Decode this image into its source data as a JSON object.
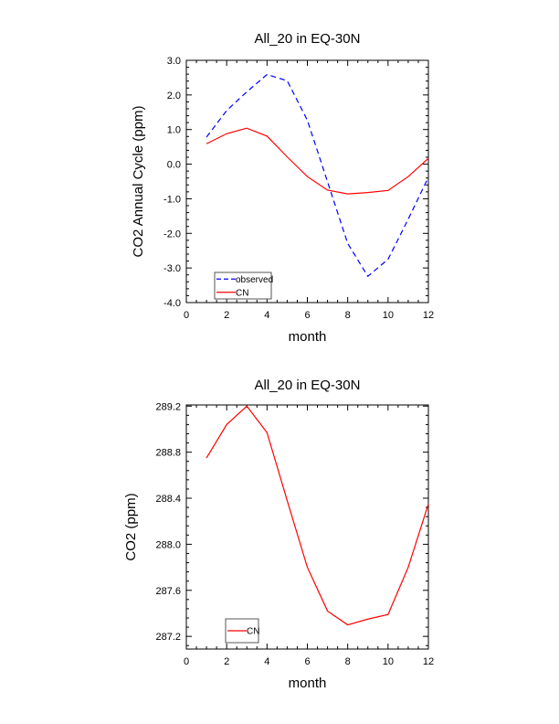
{
  "chart_data": [
    {
      "type": "line",
      "title": "All_20 in EQ-30N",
      "xlabel": "month",
      "ylabel": "CO2 Annual Cycle (ppm)",
      "xlim": [
        0,
        12
      ],
      "ylim": [
        -4.0,
        3.0
      ],
      "xticks": [
        0,
        2,
        4,
        6,
        8,
        10,
        12
      ],
      "xtick_labels": [
        "0",
        "2",
        "4",
        "6",
        "8",
        "10",
        "12"
      ],
      "yticks": [
        -4,
        -3,
        -2,
        -1,
        0,
        1,
        2,
        3
      ],
      "ytick_labels": [
        "-4.0",
        "-3.0",
        "-2.0",
        "-1.0",
        "0.0",
        "1.0",
        "2.0",
        "3.0"
      ],
      "grid": false,
      "legend_placement": "bottom-left",
      "x": [
        1,
        2,
        3,
        4,
        5,
        6,
        7,
        8,
        9,
        10,
        11,
        12
      ],
      "series": [
        {
          "name": "observed",
          "color": "#0000ff",
          "dash": true,
          "values": [
            0.78,
            1.55,
            2.09,
            2.59,
            2.41,
            1.27,
            -0.51,
            -2.29,
            -3.24,
            -2.75,
            -1.59,
            -0.38
          ]
        },
        {
          "name": "CN",
          "color": "#ff0000",
          "dash": false,
          "values": [
            0.59,
            0.88,
            1.04,
            0.81,
            0.21,
            -0.36,
            -0.75,
            -0.86,
            -0.82,
            -0.76,
            -0.36,
            0.17
          ]
        }
      ]
    },
    {
      "type": "line",
      "title": "All_20 in EQ-30N",
      "xlabel": "month",
      "ylabel": "CO2 (ppm)",
      "xlim": [
        0,
        12
      ],
      "ylim": [
        287.09,
        289.21
      ],
      "xticks": [
        0,
        2,
        4,
        6,
        8,
        10,
        12
      ],
      "xtick_labels": [
        "0",
        "2",
        "4",
        "6",
        "8",
        "10",
        "12"
      ],
      "yticks": [
        287.2,
        287.6,
        288.0,
        288.4,
        288.8,
        289.2
      ],
      "ytick_labels": [
        "287.2",
        "287.6",
        "288.0",
        "288.4",
        "288.8",
        "289.2"
      ],
      "grid": false,
      "legend_placement": "bottom-left",
      "x": [
        1,
        2,
        3,
        4,
        5,
        6,
        7,
        8,
        9,
        10,
        11,
        12
      ],
      "series": [
        {
          "name": "CN",
          "color": "#ff0000",
          "dash": false,
          "values": [
            288.75,
            289.04,
            289.2,
            288.97,
            288.38,
            287.8,
            287.42,
            287.3,
            287.35,
            287.39,
            287.8,
            288.35
          ]
        }
      ]
    }
  ]
}
